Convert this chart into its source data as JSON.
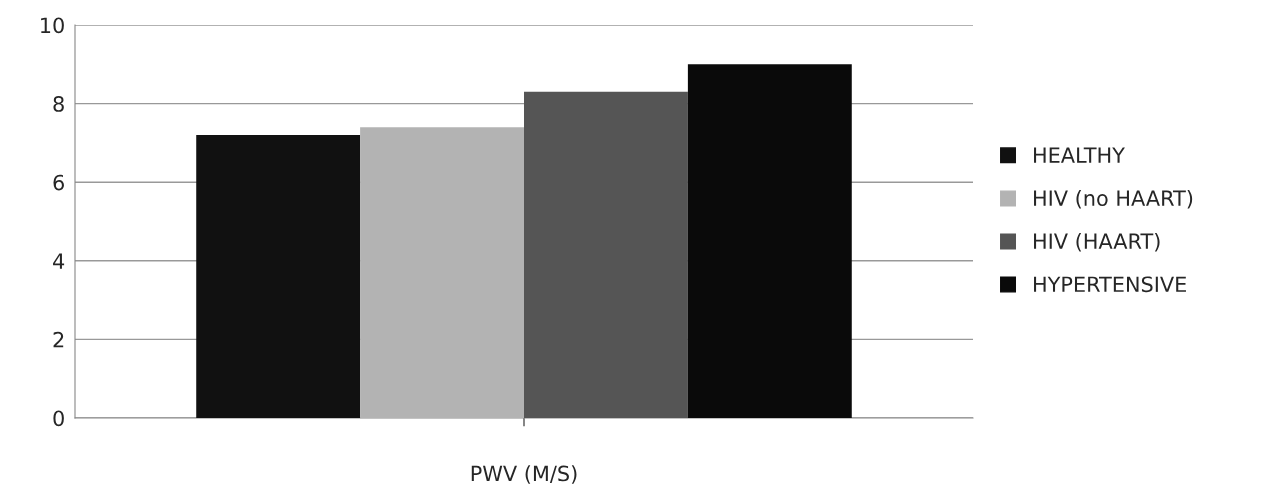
{
  "chart_data": {
    "type": "bar",
    "categories": [
      "PWV (M/S)"
    ],
    "series": [
      {
        "name": "HEALTHY",
        "color": "#111111",
        "values": [
          7.2
        ]
      },
      {
        "name": "HIV (no HAART)",
        "color": "#b3b3b3",
        "values": [
          7.4
        ]
      },
      {
        "name": "HIV (HAART)",
        "color": "#555555",
        "values": [
          8.3
        ]
      },
      {
        "name": "HYPERTENSIVE",
        "color": "#0a0a0a",
        "values": [
          9.0
        ]
      }
    ],
    "ylim": [
      0,
      10
    ],
    "yticks": [
      0,
      2,
      4,
      6,
      8,
      10
    ],
    "grid": "y",
    "legend": "right"
  }
}
